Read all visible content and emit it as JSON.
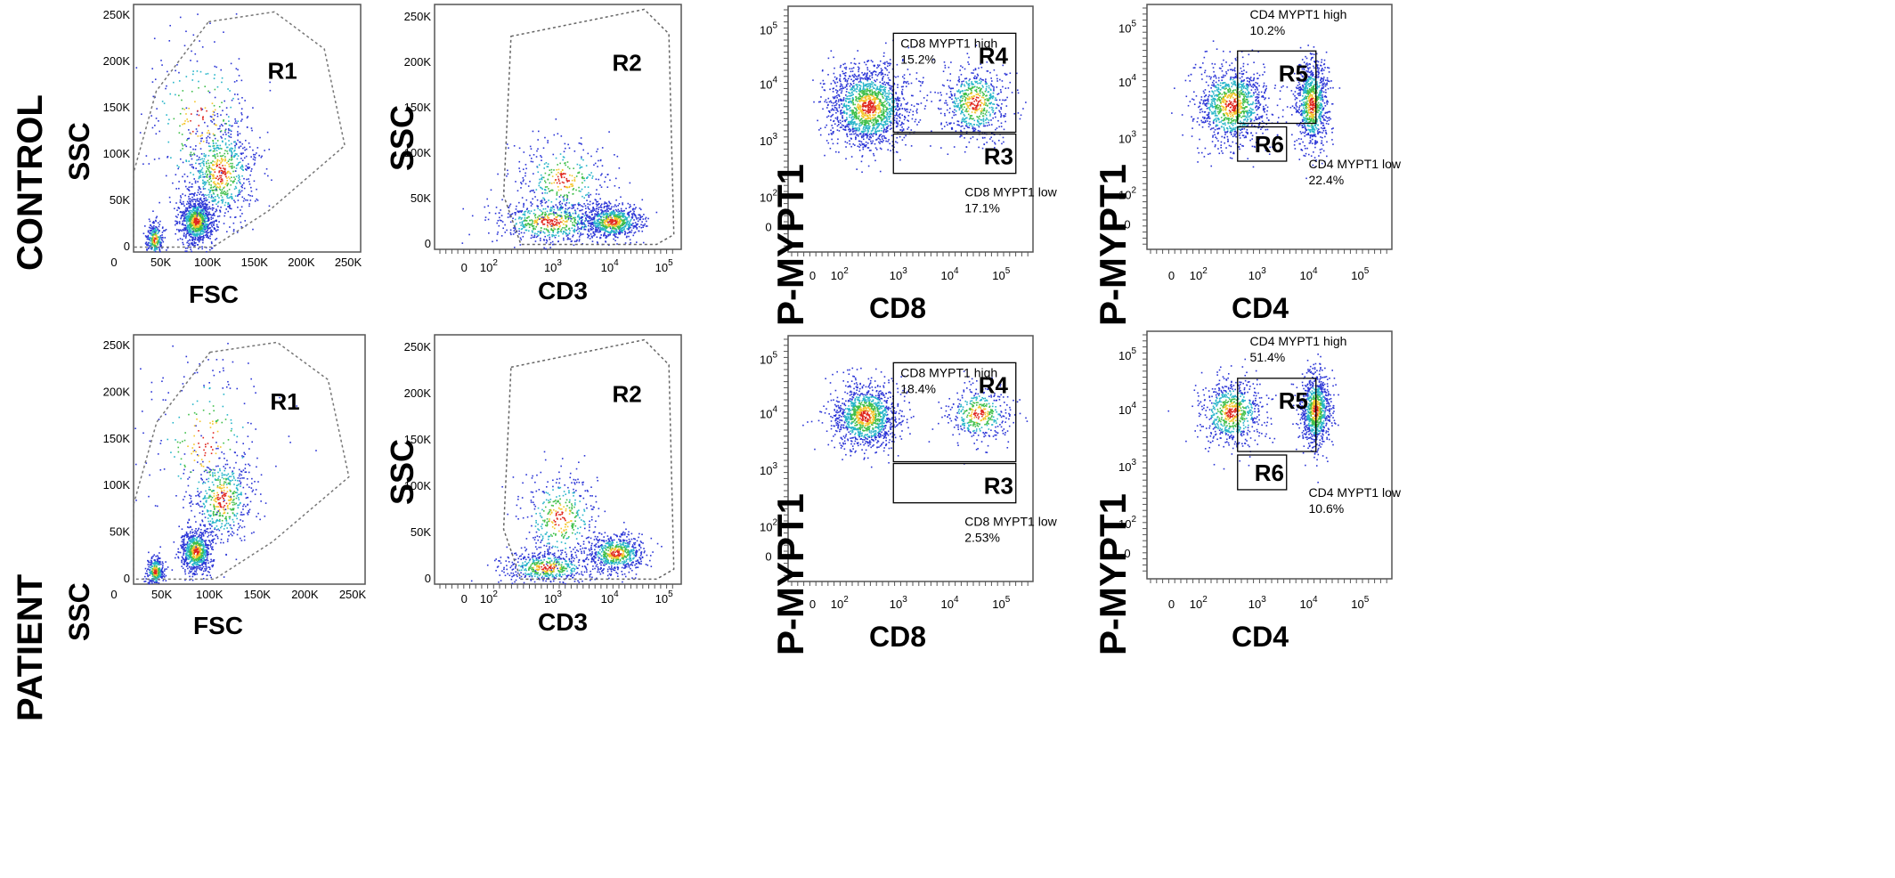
{
  "rows": [
    {
      "label": "CONTROL",
      "ssc_label": "SSC"
    },
    {
      "label": "PATIENT",
      "ssc_label": "SSC"
    }
  ],
  "chart_data": [
    {
      "type": "scatter",
      "row": "CONTROL",
      "panel": "scatter",
      "xlabel": "FSC",
      "ylabel": "SSC",
      "xticks": [
        "0",
        "50K",
        "100K",
        "150K",
        "200K",
        "250K"
      ],
      "yticks": [
        "0",
        "50K",
        "100K",
        "150K",
        "200K",
        "250K"
      ],
      "xlim": [
        0,
        262144
      ],
      "ylim": [
        0,
        262144
      ],
      "gates": [
        {
          "name": "R1",
          "shape": "polygon"
        }
      ],
      "clusters": [
        {
          "x": 72000,
          "y": 33000,
          "sx": 10000,
          "sy": 12000,
          "n": 900
        },
        {
          "x": 100000,
          "y": 85000,
          "sx": 20000,
          "sy": 28000,
          "n": 700
        },
        {
          "x": 24000,
          "y": 14000,
          "sx": 5000,
          "sy": 9000,
          "n": 250
        },
        {
          "x": 75000,
          "y": 140000,
          "sx": 35000,
          "sy": 45000,
          "n": 250
        }
      ]
    },
    {
      "type": "scatter",
      "row": "CONTROL",
      "panel": "scatter",
      "xlabel": "CD3",
      "ylabel": "SSC",
      "xticks": [
        "0",
        "10^2",
        "10^3",
        "10^4",
        "10^5"
      ],
      "yticks": [
        "0",
        "50K",
        "100K",
        "150K",
        "200K",
        "250K"
      ],
      "xlim": [
        -2,
        5.5
      ],
      "ylim": [
        0,
        262144
      ],
      "gates": [
        {
          "name": "R2",
          "shape": "polygon"
        }
      ],
      "clusters": [
        {
          "x": 1.5,
          "y": 30000,
          "sx": 0.9,
          "sy": 12000,
          "n": 650
        },
        {
          "x": 1.9,
          "y": 75000,
          "sx": 0.7,
          "sy": 22000,
          "n": 350
        },
        {
          "x": 3.4,
          "y": 30000,
          "sx": 0.45,
          "sy": 9000,
          "n": 700
        }
      ]
    },
    {
      "type": "scatter",
      "row": "CONTROL",
      "panel": "scatter",
      "xlabel": "CD8",
      "ylabel": "P-MYPT1",
      "xticks": [
        "0",
        "10^2",
        "10^3",
        "10^4",
        "10^5"
      ],
      "yticks": [
        "0",
        "10^2",
        "10^3",
        "10^4",
        "10^5"
      ],
      "xlim": [
        -1.3,
        5.4
      ],
      "ylim": [
        -0.6,
        5.4
      ],
      "gates": [
        {
          "name": "R4",
          "title": "CD8 MYPT1 high",
          "percent": "15.2%"
        },
        {
          "name": "R3",
          "title": "CD8 MYPT1 low",
          "percent": "17.1%"
        }
      ],
      "clusters": [
        {
          "x": 0.9,
          "y": 2.95,
          "sx": 0.55,
          "sy": 0.5,
          "n": 1600
        },
        {
          "x": 3.8,
          "y": 3.05,
          "sx": 0.45,
          "sy": 0.45,
          "n": 650
        }
      ]
    },
    {
      "type": "scatter",
      "row": "CONTROL",
      "panel": "scatter",
      "xlabel": "CD4",
      "ylabel": "P-MYPT1",
      "xticks": [
        "0",
        "10^2",
        "10^3",
        "10^4",
        "10^5"
      ],
      "yticks": [
        "0",
        "10^2",
        "10^3",
        "10^4",
        "10^5"
      ],
      "xlim": [
        -1.3,
        5.4
      ],
      "ylim": [
        -0.6,
        5.4
      ],
      "gates": [
        {
          "name": "R5",
          "title": "CD4 MYPT1 high",
          "percent": "10.2%"
        },
        {
          "name": "R6",
          "title": "CD4 MYPT1 low",
          "percent": "22.4%"
        }
      ],
      "clusters": [
        {
          "x": 1.0,
          "y": 2.95,
          "sx": 0.5,
          "sy": 0.5,
          "n": 1100
        },
        {
          "x": 3.2,
          "y": 2.95,
          "sx": 0.22,
          "sy": 0.55,
          "n": 900
        }
      ]
    },
    {
      "type": "scatter",
      "row": "PATIENT",
      "panel": "scatter",
      "xlabel": "FSC",
      "ylabel": "SSC",
      "xticks": [
        "0",
        "50K",
        "100K",
        "150K",
        "200K",
        "250K"
      ],
      "yticks": [
        "0",
        "50K",
        "100K",
        "150K",
        "200K",
        "250K"
      ],
      "xlim": [
        0,
        262144
      ],
      "ylim": [
        0,
        262144
      ],
      "gates": [
        {
          "name": "R1",
          "shape": "polygon"
        }
      ],
      "clusters": [
        {
          "x": 70000,
          "y": 35000,
          "sx": 9000,
          "sy": 12000,
          "n": 700
        },
        {
          "x": 100000,
          "y": 90000,
          "sx": 18000,
          "sy": 25000,
          "n": 500
        },
        {
          "x": 24000,
          "y": 14000,
          "sx": 5000,
          "sy": 8000,
          "n": 300
        },
        {
          "x": 80000,
          "y": 150000,
          "sx": 35000,
          "sy": 45000,
          "n": 220
        }
      ]
    },
    {
      "type": "scatter",
      "row": "PATIENT",
      "panel": "scatter",
      "xlabel": "CD3",
      "ylabel": "SSC",
      "xticks": [
        "0",
        "10^2",
        "10^3",
        "10^4",
        "10^5"
      ],
      "yticks": [
        "0",
        "50K",
        "100K",
        "150K",
        "200K",
        "250K"
      ],
      "xlim": [
        -2,
        5.5
      ],
      "ylim": [
        0,
        262144
      ],
      "gates": [
        {
          "name": "R2",
          "shape": "polygon"
        }
      ],
      "clusters": [
        {
          "x": 1.4,
          "y": 18000,
          "sx": 0.7,
          "sy": 8000,
          "n": 500
        },
        {
          "x": 1.8,
          "y": 70000,
          "sx": 0.6,
          "sy": 25000,
          "n": 400
        },
        {
          "x": 3.5,
          "y": 33000,
          "sx": 0.45,
          "sy": 10000,
          "n": 650
        }
      ]
    },
    {
      "type": "scatter",
      "row": "PATIENT",
      "panel": "scatter",
      "xlabel": "CD8",
      "ylabel": "P-MYPT1",
      "xticks": [
        "0",
        "10^2",
        "10^3",
        "10^4",
        "10^5"
      ],
      "yticks": [
        "0",
        "10^2",
        "10^3",
        "10^4",
        "10^5"
      ],
      "xlim": [
        -1.3,
        5.4
      ],
      "ylim": [
        -0.6,
        5.4
      ],
      "gates": [
        {
          "name": "R4",
          "title": "CD8 MYPT1 high",
          "percent": "18.4%"
        },
        {
          "name": "R3",
          "title": "CD8 MYPT1 low",
          "percent": "2.53%"
        }
      ],
      "clusters": [
        {
          "x": 0.8,
          "y": 3.45,
          "sx": 0.45,
          "sy": 0.4,
          "n": 1200
        },
        {
          "x": 3.9,
          "y": 3.5,
          "sx": 0.45,
          "sy": 0.35,
          "n": 400
        }
      ]
    },
    {
      "type": "scatter",
      "row": "PATIENT",
      "panel": "scatter",
      "xlabel": "CD4",
      "ylabel": "P-MYPT1",
      "xticks": [
        "0",
        "10^2",
        "10^3",
        "10^4",
        "10^5"
      ],
      "yticks": [
        "0",
        "10^2",
        "10^3",
        "10^4",
        "10^5"
      ],
      "xlim": [
        -1.3,
        5.4
      ],
      "ylim": [
        -0.6,
        5.4
      ],
      "gates": [
        {
          "name": "R5",
          "title": "CD4 MYPT1 high",
          "percent": "51.4%"
        },
        {
          "name": "R6",
          "title": "CD4 MYPT1 low",
          "percent": "10.6%"
        }
      ],
      "clusters": [
        {
          "x": 1.0,
          "y": 3.45,
          "sx": 0.45,
          "sy": 0.4,
          "n": 700
        },
        {
          "x": 3.3,
          "y": 3.5,
          "sx": 0.2,
          "sy": 0.45,
          "n": 900
        }
      ]
    }
  ]
}
